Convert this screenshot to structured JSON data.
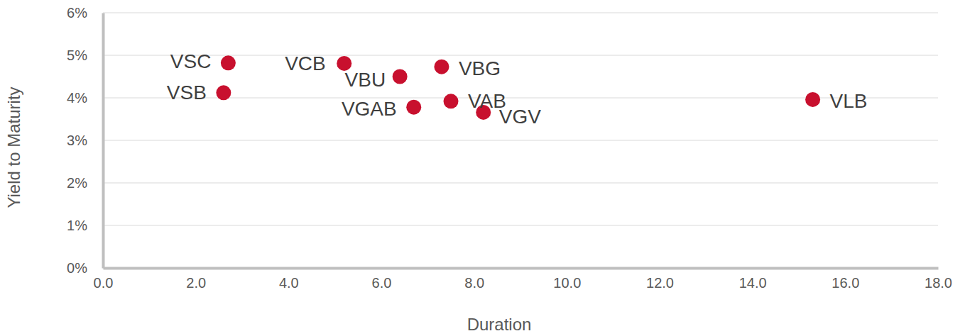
{
  "chart_data": {
    "type": "scatter",
    "x_label": "Duration",
    "y_label": "Yield to Maturity",
    "point_labels": [
      "VSC",
      "VSB",
      "VCB",
      "VBU",
      "VBG",
      "VGAB",
      "VAB",
      "VGV",
      "VLB"
    ],
    "x": [
      2.7,
      2.6,
      5.2,
      6.4,
      7.3,
      6.7,
      7.5,
      8.2,
      15.3
    ],
    "values": [
      4.82,
      4.12,
      4.81,
      4.5,
      4.73,
      3.78,
      3.92,
      3.66,
      3.96
    ],
    "color": "#c8102e",
    "marker": "circle",
    "xlim": [
      0,
      18
    ],
    "xticks": [
      {
        "value": 0,
        "label": "0.0"
      },
      {
        "value": 2,
        "label": "2.0"
      },
      {
        "value": 4,
        "label": "4.0"
      },
      {
        "value": 6,
        "label": "6.0"
      },
      {
        "value": 8,
        "label": "8.0"
      },
      {
        "value": 10,
        "label": "10.0"
      },
      {
        "value": 12,
        "label": "12.0"
      },
      {
        "value": 14,
        "label": "14.0"
      },
      {
        "value": 16,
        "label": "16.0"
      },
      {
        "value": 18,
        "label": "18.0"
      }
    ],
    "ylim": [
      0,
      6
    ],
    "yticks": [
      {
        "value": 0,
        "label": "0%"
      },
      {
        "value": 1,
        "label": "1%"
      },
      {
        "value": 2,
        "label": "2%"
      },
      {
        "value": 3,
        "label": "3%"
      },
      {
        "value": 4,
        "label": "4%"
      },
      {
        "value": 5,
        "label": "5%"
      },
      {
        "value": 6,
        "label": "6%"
      }
    ],
    "grid": true
  }
}
